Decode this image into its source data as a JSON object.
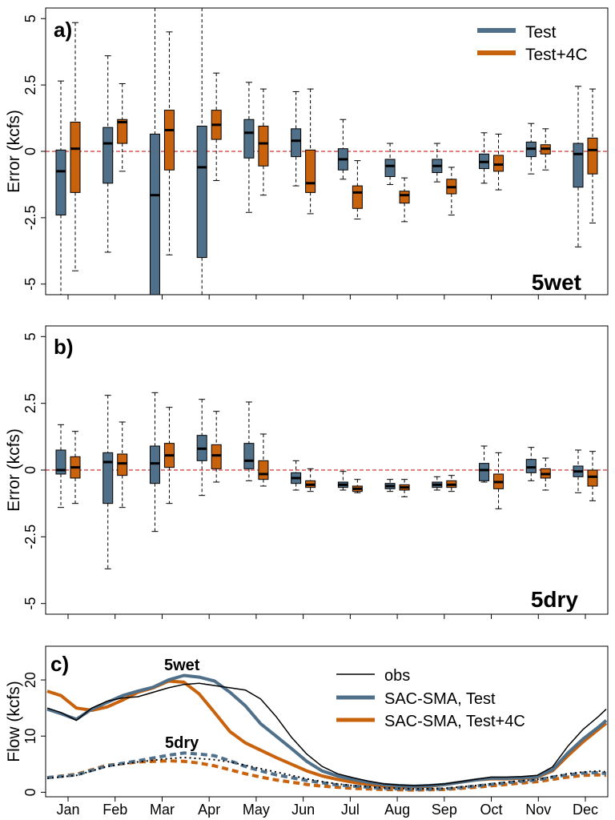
{
  "colors": {
    "test": "#50708a",
    "test4c": "#c8620c",
    "obs": "#000000",
    "zero_line": "#c00000"
  },
  "months": [
    "Jan",
    "Feb",
    "Mar",
    "Apr",
    "May",
    "Jun",
    "Jul",
    "Aug",
    "Sep",
    "Oct",
    "Nov",
    "Dec"
  ],
  "chart_data": [
    {
      "type": "box",
      "panel_label": "a)",
      "ylabel": "Error (kcfs)",
      "yticks": [
        {
          "v": 5,
          "label": "5"
        },
        {
          "v": 2.5,
          "label": "2.5"
        },
        {
          "v": 0,
          "label": "0"
        },
        {
          "v": -2.5,
          "label": "-2.5"
        },
        {
          "v": -5,
          "label": "-5"
        }
      ],
      "ylim": [
        -5.4,
        5.4
      ],
      "annotation": "5wet",
      "legend": [
        "Test",
        "Test+4C"
      ],
      "series": [
        {
          "name": "Test",
          "boxes": [
            {
              "min": -5.4,
              "q1": -2.4,
              "med": -0.75,
              "q3": 0.05,
              "max": 2.65
            },
            {
              "min": -3.8,
              "q1": -1.2,
              "med": 0.3,
              "q3": 0.9,
              "max": 3.6
            },
            {
              "min": -5.4,
              "q1": -5.4,
              "med": -1.65,
              "q3": 0.65,
              "max": 5.4
            },
            {
              "min": -5.4,
              "q1": -4.0,
              "med": -0.6,
              "q3": 0.95,
              "max": 5.4
            },
            {
              "min": -2.3,
              "q1": -0.25,
              "med": 0.7,
              "q3": 1.2,
              "max": 2.6
            },
            {
              "min": -1.3,
              "q1": -0.2,
              "med": 0.4,
              "q3": 0.85,
              "max": 2.25
            },
            {
              "min": -1.05,
              "q1": -0.7,
              "med": -0.3,
              "q3": 0.1,
              "max": 1.2
            },
            {
              "min": -1.25,
              "q1": -0.95,
              "med": -0.55,
              "q3": -0.3,
              "max": 0.3
            },
            {
              "min": -1.15,
              "q1": -0.8,
              "med": -0.55,
              "q3": -0.3,
              "max": 0.3
            },
            {
              "min": -1.2,
              "q1": -0.65,
              "med": -0.4,
              "q3": -0.1,
              "max": 0.7
            },
            {
              "min": -0.85,
              "q1": -0.2,
              "med": 0.1,
              "q3": 0.35,
              "max": 1.05
            },
            {
              "min": -3.6,
              "q1": -1.35,
              "med": -0.1,
              "q3": 0.3,
              "max": 2.45
            }
          ]
        },
        {
          "name": "Test+4C",
          "boxes": [
            {
              "min": -4.5,
              "q1": -1.55,
              "med": 0.1,
              "q3": 1.1,
              "max": 4.85
            },
            {
              "min": -0.75,
              "q1": 0.3,
              "med": 1.1,
              "q3": 1.2,
              "max": 2.55
            },
            {
              "min": -3.9,
              "q1": -0.7,
              "med": 0.8,
              "q3": 1.55,
              "max": 4.5
            },
            {
              "min": -1.1,
              "q1": 0.45,
              "med": 1.0,
              "q3": 1.55,
              "max": 2.95
            },
            {
              "min": -1.65,
              "q1": -0.55,
              "med": 0.3,
              "q3": 0.95,
              "max": 2.35
            },
            {
              "min": -2.35,
              "q1": -1.55,
              "med": -1.2,
              "q3": 0.05,
              "max": 2.35
            },
            {
              "min": -2.55,
              "q1": -2.15,
              "med": -1.55,
              "q3": -1.3,
              "max": -0.35
            },
            {
              "min": -2.65,
              "q1": -1.95,
              "med": -1.65,
              "q3": -1.5,
              "max": -1.0
            },
            {
              "min": -2.4,
              "q1": -1.6,
              "med": -1.35,
              "q3": -1.05,
              "max": -0.6
            },
            {
              "min": -1.45,
              "q1": -0.75,
              "med": -0.5,
              "q3": -0.15,
              "max": 0.65
            },
            {
              "min": -0.7,
              "q1": -0.1,
              "med": 0.1,
              "q3": 0.25,
              "max": 0.85
            },
            {
              "min": -2.7,
              "q1": -0.85,
              "med": 0.05,
              "q3": 0.5,
              "max": 2.35
            }
          ]
        }
      ]
    },
    {
      "type": "box",
      "panel_label": "b)",
      "ylabel": "Error (kcfs)",
      "yticks": [
        {
          "v": 5,
          "label": "5"
        },
        {
          "v": 2.5,
          "label": "2.5"
        },
        {
          "v": 0,
          "label": "0"
        },
        {
          "v": -2.5,
          "label": "-2.5"
        },
        {
          "v": -5,
          "label": "-5"
        }
      ],
      "ylim": [
        -5.4,
        5.4
      ],
      "annotation": "5dry",
      "series": [
        {
          "name": "Test",
          "boxes": [
            {
              "min": -1.4,
              "q1": -0.15,
              "med": 0.0,
              "q3": 0.75,
              "max": 1.7
            },
            {
              "min": -3.7,
              "q1": -1.25,
              "med": 0.3,
              "q3": 0.65,
              "max": 2.8
            },
            {
              "min": -2.3,
              "q1": -0.5,
              "med": 0.25,
              "q3": 0.9,
              "max": 2.9
            },
            {
              "min": -0.95,
              "q1": 0.35,
              "med": 0.8,
              "q3": 1.3,
              "max": 2.65
            },
            {
              "min": -0.4,
              "q1": 0.05,
              "med": 0.35,
              "q3": 1.0,
              "max": 2.55
            },
            {
              "min": -0.75,
              "q1": -0.5,
              "med": -0.3,
              "q3": -0.1,
              "max": 0.35
            },
            {
              "min": -0.75,
              "q1": -0.65,
              "med": -0.55,
              "q3": -0.45,
              "max": -0.05
            },
            {
              "min": -0.8,
              "q1": -0.7,
              "med": -0.6,
              "q3": -0.5,
              "max": -0.35
            },
            {
              "min": -0.75,
              "q1": -0.65,
              "med": -0.55,
              "q3": -0.45,
              "max": -0.25
            },
            {
              "min": -0.45,
              "q1": -0.4,
              "med": 0.0,
              "q3": 0.25,
              "max": 0.9
            },
            {
              "min": -0.4,
              "q1": -0.1,
              "med": 0.1,
              "q3": 0.4,
              "max": 0.85
            },
            {
              "min": -0.85,
              "q1": -0.25,
              "med": -0.05,
              "q3": 0.15,
              "max": 0.75
            }
          ]
        },
        {
          "name": "Test+4C",
          "boxes": [
            {
              "min": -1.25,
              "q1": -0.3,
              "med": 0.1,
              "q3": 0.5,
              "max": 1.45
            },
            {
              "min": -1.4,
              "q1": -0.2,
              "med": 0.25,
              "q3": 0.6,
              "max": 1.8
            },
            {
              "min": -1.25,
              "q1": 0.1,
              "med": 0.55,
              "q3": 1.0,
              "max": 2.35
            },
            {
              "min": -0.45,
              "q1": 0.05,
              "med": 0.55,
              "q3": 0.95,
              "max": 2.2
            },
            {
              "min": -0.6,
              "q1": -0.35,
              "med": -0.15,
              "q3": 0.35,
              "max": 1.35
            },
            {
              "min": -0.8,
              "q1": -0.65,
              "med": -0.55,
              "q3": -0.4,
              "max": 0.05
            },
            {
              "min": -0.85,
              "q1": -0.8,
              "med": -0.7,
              "q3": -0.6,
              "max": -0.35
            },
            {
              "min": -1.0,
              "q1": -0.75,
              "med": -0.65,
              "q3": -0.55,
              "max": -0.35
            },
            {
              "min": -0.8,
              "q1": -0.65,
              "med": -0.55,
              "q3": -0.4,
              "max": -0.2
            },
            {
              "min": -1.45,
              "q1": -0.7,
              "med": -0.45,
              "q3": -0.15,
              "max": 0.65
            },
            {
              "min": -0.75,
              "q1": -0.3,
              "med": -0.15,
              "q3": 0.05,
              "max": 0.45
            },
            {
              "min": -1.15,
              "q1": -0.6,
              "med": -0.25,
              "q3": 0.0,
              "max": 0.7
            }
          ]
        }
      ]
    },
    {
      "type": "line",
      "panel_label": "c)",
      "ylabel": "Flow (kcfs)",
      "yticks": [
        {
          "v": 0,
          "label": "0"
        },
        {
          "v": 10,
          "label": "10"
        },
        {
          "v": 20,
          "label": "20"
        }
      ],
      "ylim": [
        -0.8,
        26
      ],
      "xlim": [
        1,
        365
      ],
      "labels": {
        "wet": "5wet",
        "dry": "5dry"
      },
      "legend": [
        "obs",
        "SAC-SMA, Test",
        "SAC-SMA, Test+4C"
      ],
      "series": [
        {
          "name": "obs",
          "group": "wet",
          "style": "solid",
          "x": [
            1,
            10,
            20,
            30,
            40,
            50,
            60,
            70,
            80,
            90,
            100,
            110,
            120,
            130,
            140,
            150,
            160,
            170,
            180,
            190,
            200,
            210,
            220,
            230,
            240,
            250,
            260,
            270,
            280,
            290,
            300,
            310,
            320,
            330,
            340,
            350,
            360,
            365
          ],
          "y": [
            15.0,
            14.2,
            12.8,
            15.0,
            16.2,
            16.8,
            17.0,
            17.8,
            18.6,
            19.2,
            19.4,
            19.0,
            18.6,
            18.2,
            16.6,
            13.5,
            9.8,
            6.8,
            4.6,
            3.3,
            2.6,
            2.0,
            1.5,
            1.3,
            1.2,
            1.3,
            1.5,
            1.9,
            2.3,
            2.7,
            2.7,
            2.8,
            3.0,
            4.5,
            8.2,
            11.2,
            13.5,
            14.8
          ]
        },
        {
          "name": "SAC-SMA, Test",
          "group": "wet",
          "style": "solid",
          "x": [
            1,
            10,
            20,
            30,
            40,
            50,
            60,
            70,
            80,
            90,
            100,
            110,
            120,
            130,
            140,
            150,
            160,
            170,
            180,
            190,
            200,
            210,
            220,
            230,
            240,
            250,
            260,
            270,
            280,
            290,
            300,
            310,
            320,
            330,
            340,
            350,
            360,
            365
          ],
          "y": [
            14.8,
            14.0,
            13.0,
            14.8,
            16.0,
            17.2,
            18.0,
            18.7,
            20.0,
            20.8,
            20.5,
            19.8,
            17.8,
            15.4,
            12.2,
            10.0,
            7.8,
            5.5,
            3.8,
            2.9,
            2.3,
            1.8,
            1.4,
            1.2,
            1.1,
            1.2,
            1.4,
            1.8,
            2.2,
            2.5,
            2.5,
            2.6,
            2.8,
            4.0,
            7.0,
            9.5,
            11.6,
            12.8
          ]
        },
        {
          "name": "SAC-SMA, Test+4C",
          "group": "wet",
          "style": "solid",
          "x": [
            1,
            10,
            20,
            30,
            40,
            50,
            60,
            70,
            80,
            90,
            100,
            110,
            120,
            130,
            140,
            150,
            160,
            170,
            180,
            190,
            200,
            210,
            220,
            230,
            240,
            250,
            260,
            270,
            280,
            290,
            300,
            310,
            320,
            330,
            340,
            350,
            360,
            365
          ],
          "y": [
            18.0,
            17.2,
            15.0,
            14.6,
            15.2,
            16.4,
            17.8,
            18.6,
            19.8,
            19.6,
            17.5,
            14.2,
            10.8,
            8.8,
            7.5,
            6.2,
            5.0,
            3.8,
            2.9,
            2.3,
            1.8,
            1.4,
            1.1,
            1.0,
            1.0,
            1.1,
            1.4,
            1.8,
            2.2,
            2.4,
            2.4,
            2.5,
            2.7,
            3.8,
            6.5,
            9.0,
            11.2,
            12.3
          ]
        },
        {
          "name": "obs",
          "group": "dry",
          "style": "dotted",
          "x": [
            1,
            20,
            40,
            60,
            80,
            90,
            100,
            110,
            120,
            130,
            140,
            150,
            160,
            170,
            180,
            190,
            200,
            220,
            240,
            260,
            280,
            300,
            320,
            330,
            340,
            350,
            360,
            365
          ],
          "y": [
            2.5,
            3.0,
            4.6,
            5.4,
            6.0,
            6.2,
            6.0,
            5.8,
            5.4,
            4.8,
            4.2,
            3.6,
            3.0,
            2.4,
            1.9,
            1.5,
            1.2,
            0.8,
            0.6,
            0.7,
            1.2,
            1.8,
            2.3,
            2.8,
            3.3,
            3.6,
            3.8,
            3.6
          ]
        },
        {
          "name": "SAC-SMA, Test",
          "group": "dry",
          "style": "dashed",
          "x": [
            1,
            20,
            40,
            60,
            80,
            90,
            100,
            110,
            120,
            130,
            140,
            150,
            160,
            170,
            180,
            190,
            200,
            220,
            240,
            260,
            280,
            300,
            320,
            330,
            340,
            350,
            360,
            365
          ],
          "y": [
            2.6,
            3.1,
            4.7,
            5.6,
            6.6,
            7.0,
            6.8,
            6.5,
            5.6,
            4.6,
            3.8,
            3.1,
            2.6,
            2.1,
            1.7,
            1.3,
            1.1,
            0.7,
            0.5,
            0.6,
            1.1,
            1.7,
            2.2,
            2.7,
            3.1,
            3.4,
            3.5,
            3.3
          ]
        },
        {
          "name": "SAC-SMA, Test+4C",
          "group": "dry",
          "style": "dashed",
          "x": [
            1,
            20,
            40,
            60,
            80,
            90,
            100,
            110,
            120,
            130,
            140,
            150,
            160,
            170,
            180,
            190,
            200,
            220,
            240,
            260,
            280,
            300,
            320,
            330,
            340,
            350,
            360,
            365
          ],
          "y": [
            2.6,
            3.2,
            4.8,
            5.4,
            5.6,
            5.5,
            5.2,
            4.7,
            4.0,
            3.3,
            2.7,
            2.2,
            1.8,
            1.4,
            1.1,
            0.9,
            0.7,
            0.5,
            0.4,
            0.5,
            0.9,
            1.4,
            1.9,
            2.3,
            2.7,
            3.0,
            3.1,
            3.0
          ]
        }
      ]
    }
  ]
}
